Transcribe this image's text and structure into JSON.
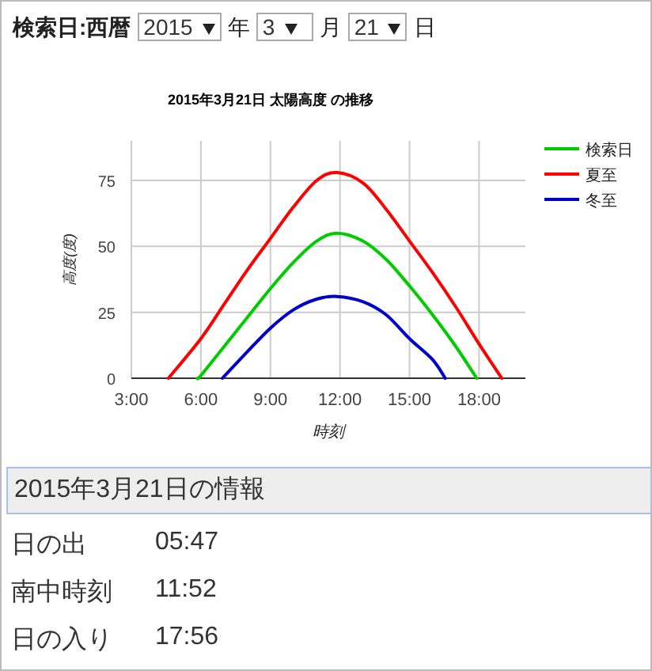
{
  "chart_data": {
    "type": "line",
    "title": "2015年3月21日 太陽高度 の推移",
    "xlabel": "時刻",
    "ylabel": "高度(度)",
    "xlim": [
      3,
      20
    ],
    "ylim": [
      0,
      90
    ],
    "xticks": [
      {
        "value": 3,
        "label": "3:00"
      },
      {
        "value": 6,
        "label": "6:00"
      },
      {
        "value": 9,
        "label": "9:00"
      },
      {
        "value": 12,
        "label": "12:00"
      },
      {
        "value": 15,
        "label": "15:00"
      },
      {
        "value": 18,
        "label": "18:00"
      }
    ],
    "yticks": [
      0,
      25,
      50,
      75
    ],
    "grid": true,
    "legend": "top right",
    "line_style": "solid",
    "series": [
      {
        "name": "検索日",
        "color": "#00cc00",
        "x": [
          5.85,
          6,
          7,
          8,
          9,
          10,
          11,
          11.87,
          13,
          14,
          15,
          16,
          17,
          17.9
        ],
        "values": [
          0,
          1,
          12,
          23,
          34,
          44,
          52,
          55,
          52,
          45,
          35,
          24,
          12,
          0
        ]
      },
      {
        "name": "夏至",
        "color": "#ff0000",
        "x": [
          4.6,
          6,
          7,
          8,
          9,
          10,
          11,
          11.87,
          13,
          14,
          15,
          16,
          17,
          18,
          18.98
        ],
        "values": [
          0,
          15,
          28,
          41,
          53,
          65,
          75,
          78,
          74,
          64,
          52,
          40,
          27,
          13,
          0
        ]
      },
      {
        "name": "冬至",
        "color": "#0000cc",
        "x": [
          6.93,
          8,
          9,
          10,
          11,
          11.87,
          13,
          14,
          15,
          16,
          16.54
        ],
        "values": [
          0,
          10,
          19,
          26,
          30,
          31,
          29,
          24,
          15,
          7,
          0
        ]
      }
    ],
    "annotations": [
      "検索日:西暦",
      "2015",
      "年",
      "3",
      "月",
      "21",
      "日",
      "2015年3月21日の情報",
      "日の出",
      "05:47",
      "南中時刻",
      "11:52",
      "日の入り",
      "17:56"
    ]
  }
}
